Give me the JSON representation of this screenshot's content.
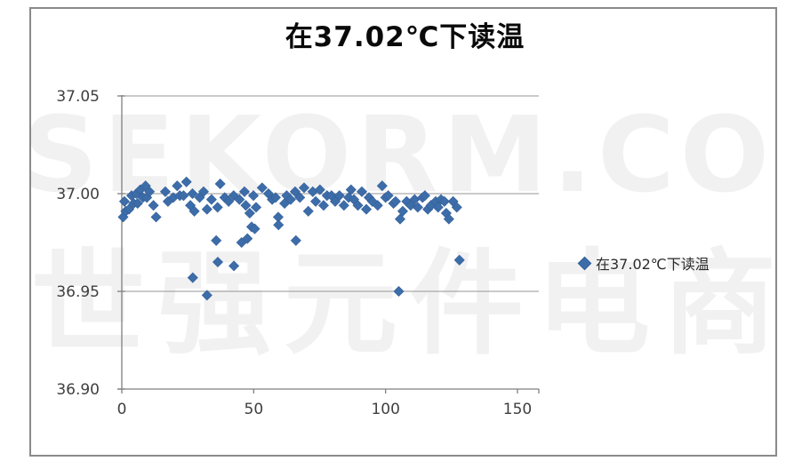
{
  "watermark": {
    "line1": "SEKORM.COM",
    "line2": "世强元件电商"
  },
  "legend": {
    "label": "在37.02℃下读温"
  },
  "colors": {
    "marker": "#3d6da9",
    "marker_stroke": "#335f99",
    "gridline": "#959595",
    "axis": "#7f7f7f",
    "tick_label": "#3f3f3f",
    "frame_border": "#8a8a8a"
  },
  "chart_data": {
    "type": "scatter",
    "title": "在37.02℃下读温",
    "legend_label": "在37.02℃下读温",
    "legend_position": "right",
    "grid": true,
    "xlabel": "",
    "ylabel": "",
    "xlim": [
      0,
      150
    ],
    "ylim": [
      36.9,
      37.05
    ],
    "xtick_labels": [
      "0",
      "50",
      "100",
      "150"
    ],
    "xtick_values": [
      0,
      50,
      100,
      150
    ],
    "ytick_labels": [
      "37.05",
      "37.00",
      "36.95",
      "36.90"
    ],
    "ytick_values": [
      37.05,
      37.0,
      36.95,
      36.9
    ],
    "series": [
      {
        "name": "在37.02℃下读温",
        "points": [
          [
            0.5,
            36.988
          ],
          [
            1,
            36.996
          ],
          [
            1.5,
            36.991
          ],
          [
            2.7,
            36.992
          ],
          [
            3.7,
            36.999
          ],
          [
            4.5,
            36.995
          ],
          [
            5.5,
            37.0
          ],
          [
            6,
            36.995
          ],
          [
            7,
            37.002
          ],
          [
            8,
            36.998
          ],
          [
            9,
            37.004
          ],
          [
            9.5,
            36.998
          ],
          [
            10.5,
            37.001
          ],
          [
            12,
            36.994
          ],
          [
            13,
            36.988
          ],
          [
            16.5,
            37.001
          ],
          [
            17.5,
            36.996
          ],
          [
            19.5,
            36.998
          ],
          [
            21,
            37.004
          ],
          [
            22,
            36.999
          ],
          [
            23.4,
            36.999
          ],
          [
            24.5,
            37.006
          ],
          [
            26,
            36.994
          ],
          [
            26.8,
            37.0
          ],
          [
            26.9,
            36.957
          ],
          [
            27.5,
            36.991
          ],
          [
            29.5,
            36.998
          ],
          [
            31,
            37.001
          ],
          [
            32.3,
            36.992
          ],
          [
            32.3,
            36.948
          ],
          [
            34,
            36.997
          ],
          [
            35.8,
            36.976
          ],
          [
            36.3,
            36.993
          ],
          [
            36.4,
            36.965
          ],
          [
            37.3,
            37.005
          ],
          [
            39,
            36.998
          ],
          [
            40.5,
            36.996
          ],
          [
            42.4,
            36.999
          ],
          [
            42.5,
            36.963
          ],
          [
            44.6,
            36.997
          ],
          [
            45.4,
            36.975
          ],
          [
            46.5,
            37.001
          ],
          [
            47,
            36.994
          ],
          [
            47.6,
            36.977
          ],
          [
            48.5,
            36.99
          ],
          [
            49.2,
            36.983
          ],
          [
            49.9,
            36.999
          ],
          [
            50.4,
            36.982
          ],
          [
            50.9,
            36.993
          ],
          [
            53.2,
            37.003
          ],
          [
            55.6,
            37.0
          ],
          [
            57,
            36.997
          ],
          [
            58.3,
            36.998
          ],
          [
            59.3,
            36.988
          ],
          [
            59.4,
            36.984
          ],
          [
            61.7,
            36.995
          ],
          [
            62.5,
            36.999
          ],
          [
            64,
            36.997
          ],
          [
            65.7,
            37.001
          ],
          [
            66,
            36.976
          ],
          [
            67.5,
            36.998
          ],
          [
            69.1,
            37.003
          ],
          [
            70.7,
            36.991
          ],
          [
            72.4,
            37.001
          ],
          [
            73.5,
            36.996
          ],
          [
            75.1,
            37.002
          ],
          [
            76.5,
            36.994
          ],
          [
            77.8,
            36.999
          ],
          [
            79.5,
            36.999
          ],
          [
            80.9,
            36.996
          ],
          [
            82.5,
            36.999
          ],
          [
            84.2,
            36.994
          ],
          [
            86,
            36.998
          ],
          [
            86.9,
            37.002
          ],
          [
            88,
            36.997
          ],
          [
            89.5,
            36.994
          ],
          [
            91,
            37.001
          ],
          [
            92.7,
            36.992
          ],
          [
            93.7,
            36.998
          ],
          [
            95,
            36.996
          ],
          [
            97,
            36.994
          ],
          [
            98.7,
            37.004
          ],
          [
            100,
            36.998
          ],
          [
            101,
            36.999
          ],
          [
            103,
            36.995
          ],
          [
            103.8,
            36.996
          ],
          [
            105,
            36.95
          ],
          [
            105.5,
            36.987
          ],
          [
            106.5,
            36.991
          ],
          [
            108,
            36.996
          ],
          [
            109.5,
            36.994
          ],
          [
            111,
            36.997
          ],
          [
            112.2,
            36.993
          ],
          [
            114,
            36.998
          ],
          [
            114.9,
            36.999
          ],
          [
            116,
            36.992
          ],
          [
            117.2,
            36.994
          ],
          [
            119,
            36.996
          ],
          [
            119.9,
            36.993
          ],
          [
            121,
            36.997
          ],
          [
            122.3,
            36.996
          ],
          [
            123,
            36.99
          ],
          [
            124,
            36.987
          ],
          [
            125.6,
            36.996
          ],
          [
            127,
            36.993
          ],
          [
            128,
            36.966
          ]
        ]
      }
    ]
  }
}
